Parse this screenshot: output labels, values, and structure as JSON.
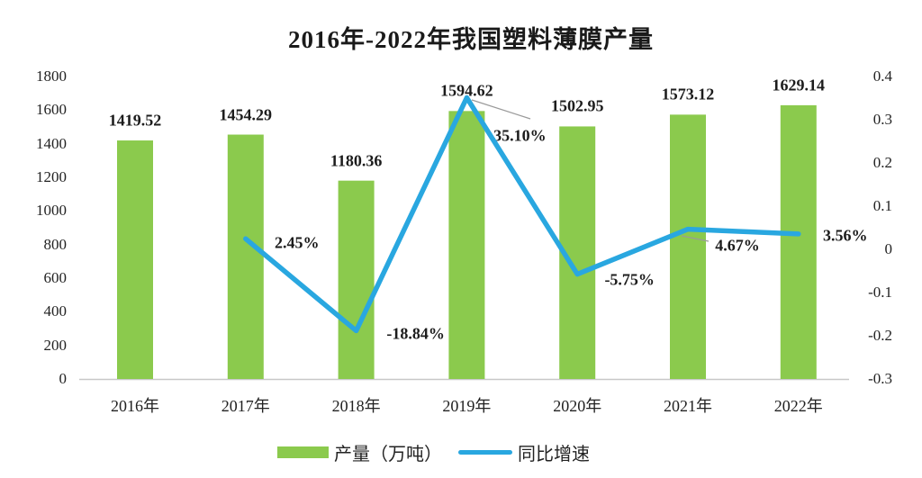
{
  "chart_data": {
    "type": "combo",
    "title": "2016年-2022年我国塑料薄膜产量",
    "categories": [
      "2016年",
      "2017年",
      "2018年",
      "2019年",
      "2020年",
      "2021年",
      "2022年"
    ],
    "series": [
      {
        "name": "产量（万吨）",
        "type": "bar",
        "axis": "left",
        "color": "#8BCA4D",
        "values": [
          1419.52,
          1454.29,
          1180.36,
          1594.62,
          1502.95,
          1573.12,
          1629.14
        ],
        "data_labels": [
          "1419.52",
          "1454.29",
          "1180.36",
          "1594.62",
          "1502.95",
          "1573.12",
          "1629.14"
        ]
      },
      {
        "name": "同比增速",
        "type": "line",
        "axis": "right",
        "color": "#29A7E0",
        "values": [
          null,
          0.0245,
          -0.1884,
          0.351,
          -0.0575,
          0.0467,
          0.0356
        ],
        "data_labels": [
          null,
          "2.45%",
          "-18.84%",
          "35.10%",
          "-5.75%",
          "4.67%",
          "3.56%"
        ]
      }
    ],
    "left_axis": {
      "min": 0,
      "max": 1800,
      "ticks": [
        "0",
        "200",
        "400",
        "600",
        "800",
        "1000",
        "1200",
        "1400",
        "1600",
        "1800"
      ]
    },
    "right_axis": {
      "min": -0.3,
      "max": 0.4,
      "ticks": [
        "-0.3",
        "-0.2",
        "-0.1",
        "0",
        "0.1",
        "0.2",
        "0.3",
        "0.4"
      ]
    },
    "grid": false,
    "legend_position": "bottom",
    "baseline_color": "#c8c8c8",
    "leader_line_color": "#9a9a9a"
  }
}
